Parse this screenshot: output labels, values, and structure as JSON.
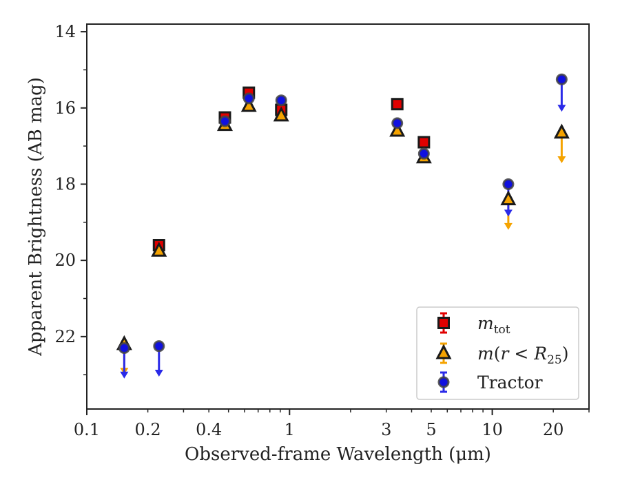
{
  "chart_data": {
    "type": "scatter",
    "title": "",
    "xlabel": "Observed-frame Wavelength (μm)",
    "ylabel": "Apparent Brightness (AB mag)",
    "x_scale": "log",
    "xlim": [
      0.1,
      30
    ],
    "ylim": [
      23.9,
      13.8
    ],
    "y_inverted": true,
    "x_ticks": [
      {
        "value": 0.1,
        "label": "0.1"
      },
      {
        "value": 0.2,
        "label": "0.2"
      },
      {
        "value": 0.4,
        "label": "0.4"
      },
      {
        "value": 1,
        "label": "1"
      },
      {
        "value": 3,
        "label": "3"
      },
      {
        "value": 5,
        "label": "5"
      },
      {
        "value": 10,
        "label": "10"
      },
      {
        "value": 20,
        "label": "20"
      }
    ],
    "y_ticks": [
      {
        "value": 14,
        "label": "14"
      },
      {
        "value": 16,
        "label": "16"
      },
      {
        "value": 18,
        "label": "18"
      },
      {
        "value": 20,
        "label": "20"
      },
      {
        "value": 22,
        "label": "22"
      }
    ],
    "grid": false,
    "legend_position": "bottom-right",
    "series": [
      {
        "name": "m_tot",
        "legend_html": "<tspan font-style='italic'>m</tspan><tspan font-size='17' dy='6'>tot</tspan>",
        "marker": "square",
        "face_color": "#e00000",
        "err_color": "#e00000",
        "points": [
          {
            "x": 0.227,
            "y": 19.6
          },
          {
            "x": 0.48,
            "y": 16.25
          },
          {
            "x": 0.63,
            "y": 15.6
          },
          {
            "x": 0.91,
            "y": 16.05
          },
          {
            "x": 3.4,
            "y": 15.9
          },
          {
            "x": 4.6,
            "y": 16.9
          }
        ]
      },
      {
        "name": "m(r < R25)",
        "legend_html": "<tspan font-style='italic'>m</tspan>(<tspan font-style='italic'>r</tspan> &lt; <tspan font-style='italic'>R</tspan><tspan font-size='17' dy='6'>25</tspan><tspan dy='-6'>)</tspan>",
        "marker": "triangle",
        "face_color": "#f5a300",
        "err_color": "#f5a300",
        "points": [
          {
            "x": 0.153,
            "y": 22.2,
            "upper_limit": true,
            "arrow_to": 23.0
          },
          {
            "x": 0.227,
            "y": 19.75
          },
          {
            "x": 0.48,
            "y": 16.45
          },
          {
            "x": 0.63,
            "y": 15.95
          },
          {
            "x": 0.91,
            "y": 16.2
          },
          {
            "x": 3.4,
            "y": 16.6
          },
          {
            "x": 4.6,
            "y": 17.3
          },
          {
            "x": 12.0,
            "y": 18.4,
            "upper_limit": true,
            "arrow_to": 19.2
          },
          {
            "x": 22.0,
            "y": 16.65,
            "upper_limit": true,
            "arrow_to": 17.45
          }
        ]
      },
      {
        "name": "Tractor",
        "legend_html": "Tractor",
        "marker": "circle",
        "face_color": "#1010e0",
        "err_color": "#2a2ae8",
        "points": [
          {
            "x": 0.153,
            "y": 22.3,
            "upper_limit": true,
            "arrow_to": 23.1
          },
          {
            "x": 0.227,
            "y": 22.25,
            "upper_limit": true,
            "arrow_to": 23.05
          },
          {
            "x": 0.48,
            "y": 16.35
          },
          {
            "x": 0.63,
            "y": 15.75
          },
          {
            "x": 0.91,
            "y": 15.8
          },
          {
            "x": 3.4,
            "y": 16.4
          },
          {
            "x": 4.6,
            "y": 17.2
          },
          {
            "x": 12.0,
            "y": 18.0,
            "upper_limit": true,
            "arrow_to": 18.85
          },
          {
            "x": 22.0,
            "y": 15.25,
            "upper_limit": true,
            "arrow_to": 16.1
          }
        ]
      }
    ]
  }
}
